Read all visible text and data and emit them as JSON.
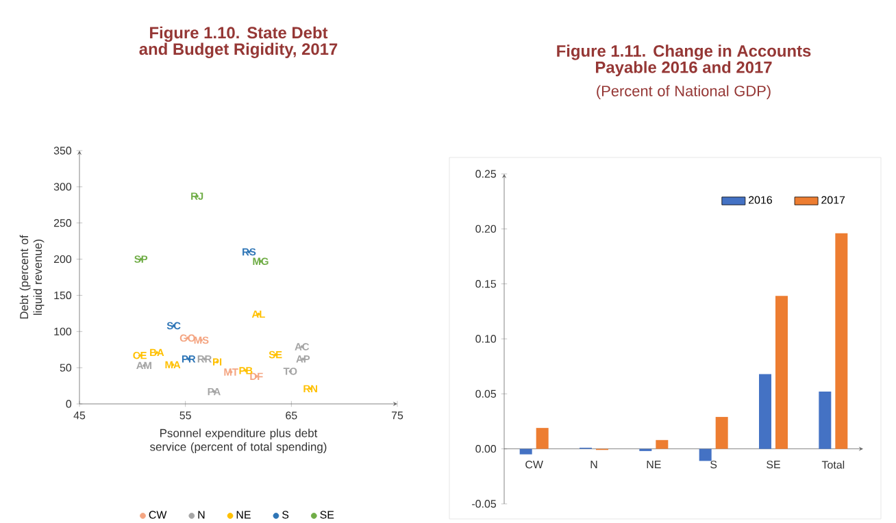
{
  "chart_data": [
    {
      "type": "scatter",
      "title": "Figure 1.10. State Debt and Budget Rigidity, 2017",
      "xlabel": "Psonnel expenditure plus debt service (percent of total spending)",
      "ylabel": "Debt (percent of liquid revenue)",
      "xlim": [
        45,
        75
      ],
      "xticks": [
        45,
        55,
        65,
        75
      ],
      "ylim": [
        0,
        350
      ],
      "yticks": [
        0,
        50,
        100,
        150,
        200,
        250,
        300,
        350
      ],
      "legend": "bottom",
      "series": [
        {
          "name": "CW",
          "color": "#f4a582",
          "x": [
            55.2,
            56.5,
            59.3,
            61.7
          ],
          "values": [
            91,
            88,
            44,
            38
          ],
          "value_labels": [
            "GO",
            "MS",
            "MT",
            "DF"
          ]
        },
        {
          "name": "N",
          "color": "#a5a5a5",
          "x": [
            51.1,
            56.8,
            66.0,
            66.1,
            64.9,
            57.7
          ],
          "values": [
            53,
            62,
            79,
            62,
            45,
            17
          ],
          "value_labels": [
            "AM",
            "RR",
            "AC",
            "AP",
            "TO",
            "PA"
          ]
        },
        {
          "name": "NE",
          "color": "#ffc000",
          "x": [
            61.9,
            50.7,
            52.3,
            53.8,
            58.0,
            60.7,
            63.5,
            66.8
          ],
          "values": [
            124,
            67,
            71,
            54,
            58,
            46,
            68,
            21
          ],
          "value_labels": [
            "AL",
            "CE",
            "BA",
            "MA",
            "PI",
            "PB",
            "SE",
            "RN"
          ]
        },
        {
          "name": "S",
          "color": "#2e75b6",
          "x": [
            61.0,
            53.9,
            55.3
          ],
          "values": [
            210,
            108,
            62
          ],
          "value_labels": [
            "RS",
            "SC",
            "PR"
          ]
        },
        {
          "name": "SE",
          "color": "#70ad47",
          "x": [
            56.1,
            50.8,
            62.1
          ],
          "values": [
            287,
            200,
            197
          ],
          "value_labels": [
            "RJ",
            "SP",
            "MG"
          ]
        }
      ]
    },
    {
      "type": "bar",
      "title": "Figure 1.11. Change in Accounts Payable 2016 and 2017",
      "subtitle": "(Percent of National GDP)",
      "categories": [
        "CW",
        "N",
        "NE",
        "S",
        "SE",
        "Total"
      ],
      "ylim": [
        -0.05,
        0.25
      ],
      "yticks": [
        {
          "value": -0.05,
          "label": "-0.05"
        },
        {
          "value": 0,
          "label": "0.00"
        },
        {
          "value": 0.05,
          "label": "0.05"
        },
        {
          "value": 0.1,
          "label": "0.10"
        },
        {
          "value": 0.15,
          "label": "0.15"
        },
        {
          "value": 0.2,
          "label": "0.20"
        },
        {
          "value": 0.25,
          "label": "0.25"
        }
      ],
      "legend": "top right",
      "series": [
        {
          "name": "2016",
          "color": "#4472c4",
          "values": [
            -0.005,
            0.001,
            -0.002,
            -0.011,
            0.068,
            0.052
          ]
        },
        {
          "name": "2017",
          "color": "#ed7d31",
          "values": [
            0.019,
            -0.001,
            0.008,
            0.029,
            0.139,
            0.196
          ]
        }
      ]
    }
  ]
}
